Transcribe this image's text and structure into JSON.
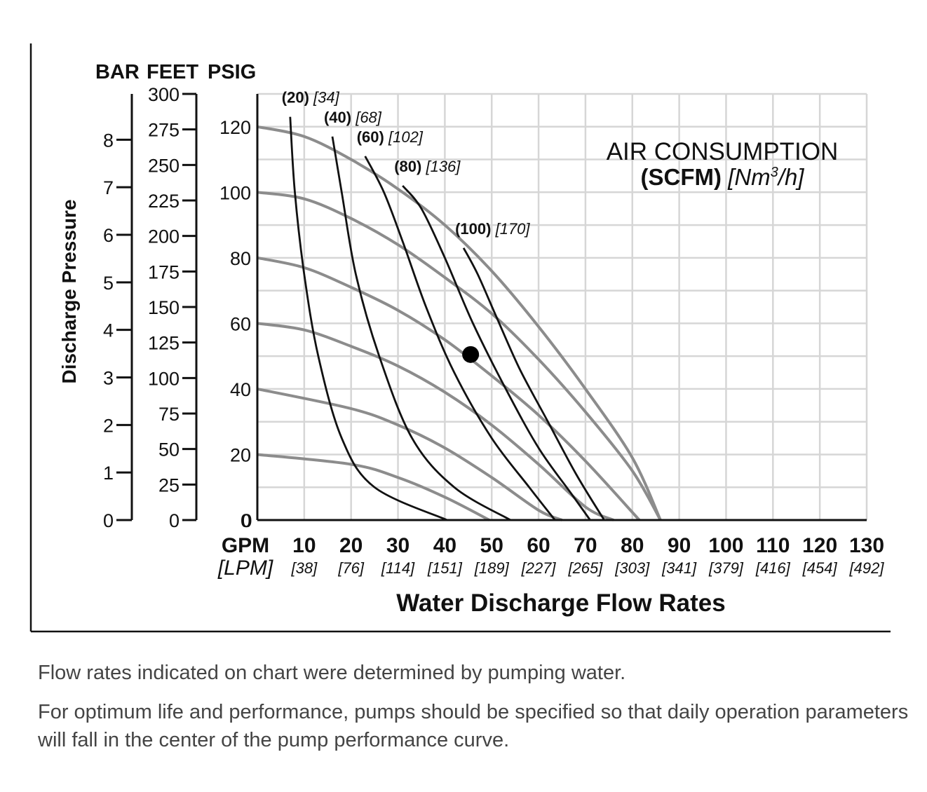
{
  "chart_data": {
    "type": "line",
    "title_line1": "AIR CONSUMPTION",
    "title_bold": "(SCFM)",
    "title_italic_prefix": "[Nm",
    "title_sup": "3",
    "title_italic_suffix": "/h]",
    "xlabel": "Water Discharge Flow Rates",
    "ylabel": "Discharge Pressure",
    "axis_headers": {
      "bar": "BAR",
      "feet": "FEET",
      "psig": "PSIG"
    },
    "x_unit_label": "GPM",
    "x_unit_label_alt": "[LPM]",
    "xlim": [
      0,
      130
    ],
    "ylim_psig": [
      0,
      130
    ],
    "x_ticks": [
      {
        "gpm": "0",
        "lpm": ""
      },
      {
        "gpm": "10",
        "lpm": "[38]"
      },
      {
        "gpm": "20",
        "lpm": "[76]"
      },
      {
        "gpm": "30",
        "lpm": "[114]"
      },
      {
        "gpm": "40",
        "lpm": "[151]"
      },
      {
        "gpm": "50",
        "lpm": "[189]"
      },
      {
        "gpm": "60",
        "lpm": "[227]"
      },
      {
        "gpm": "70",
        "lpm": "[265]"
      },
      {
        "gpm": "80",
        "lpm": "[303]"
      },
      {
        "gpm": "90",
        "lpm": "[341]"
      },
      {
        "gpm": "100",
        "lpm": "[379]"
      },
      {
        "gpm": "110",
        "lpm": "[416]"
      },
      {
        "gpm": "120",
        "lpm": "[454]"
      },
      {
        "gpm": "130",
        "lpm": "[492]"
      }
    ],
    "psig_ticks": [
      "0",
      "20",
      "40",
      "60",
      "80",
      "100",
      "120"
    ],
    "feet_ticks": [
      "0",
      "25",
      "50",
      "75",
      "100",
      "125",
      "150",
      "175",
      "200",
      "225",
      "250",
      "275",
      "300"
    ],
    "bar_ticks": [
      "0",
      "1",
      "2",
      "3",
      "4",
      "5",
      "6",
      "7",
      "8"
    ],
    "performance_curves": [
      {
        "points": [
          [
            0,
            20
          ],
          [
            20,
            17
          ],
          [
            30,
            13
          ],
          [
            40,
            7
          ],
          [
            49.5,
            0
          ]
        ]
      },
      {
        "points": [
          [
            0,
            40
          ],
          [
            20,
            34
          ],
          [
            30,
            29
          ],
          [
            40,
            22
          ],
          [
            50,
            13
          ],
          [
            60,
            3
          ],
          [
            65,
            0
          ]
        ]
      },
      {
        "points": [
          [
            0,
            60
          ],
          [
            10,
            58
          ],
          [
            20,
            53
          ],
          [
            30,
            47
          ],
          [
            40,
            39
          ],
          [
            50,
            29
          ],
          [
            60,
            17
          ],
          [
            70,
            4
          ],
          [
            76,
            0
          ]
        ]
      },
      {
        "points": [
          [
            0,
            80
          ],
          [
            10,
            77
          ],
          [
            20,
            71
          ],
          [
            30,
            64
          ],
          [
            40,
            55
          ],
          [
            50,
            44
          ],
          [
            60,
            32
          ],
          [
            70,
            18
          ],
          [
            81.5,
            0
          ]
        ]
      },
      {
        "points": [
          [
            0,
            100
          ],
          [
            10,
            98
          ],
          [
            20,
            92
          ],
          [
            30,
            84
          ],
          [
            40,
            74
          ],
          [
            50,
            63
          ],
          [
            60,
            49
          ],
          [
            70,
            33
          ],
          [
            80,
            15
          ],
          [
            86,
            0
          ]
        ]
      },
      {
        "points": [
          [
            0,
            120
          ],
          [
            10,
            117
          ],
          [
            20,
            110
          ],
          [
            30,
            101
          ],
          [
            40,
            90
          ],
          [
            50,
            76
          ],
          [
            60,
            59
          ],
          [
            70,
            40
          ],
          [
            80,
            19
          ],
          [
            86,
            0
          ]
        ]
      }
    ],
    "air_consumption_curves": [
      {
        "label_bold": "(20)",
        "label_italic": "[34]",
        "points": [
          [
            7,
            123
          ],
          [
            8,
            100
          ],
          [
            10,
            75
          ],
          [
            13,
            50
          ],
          [
            18,
            25
          ],
          [
            25,
            10
          ],
          [
            40.5,
            0
          ]
        ]
      },
      {
        "label_bold": "(40)",
        "label_italic": "[68]",
        "points": [
          [
            16,
            117
          ],
          [
            18,
            100
          ],
          [
            21,
            75
          ],
          [
            26,
            50
          ],
          [
            33,
            25
          ],
          [
            42,
            10
          ],
          [
            54,
            0
          ]
        ]
      },
      {
        "label_bold": "(60)",
        "label_italic": "[102]",
        "points": [
          [
            23,
            111
          ],
          [
            27,
            100
          ],
          [
            31,
            85
          ],
          [
            36,
            65
          ],
          [
            42,
            45
          ],
          [
            50,
            25
          ],
          [
            58,
            10
          ],
          [
            63.5,
            0
          ]
        ]
      },
      {
        "label_bold": "(80)",
        "label_italic": "[136]",
        "points": [
          [
            31,
            102
          ],
          [
            35,
            95
          ],
          [
            40,
            80
          ],
          [
            46,
            60
          ],
          [
            53,
            40
          ],
          [
            60,
            22
          ],
          [
            67,
            8
          ],
          [
            71,
            0
          ]
        ]
      },
      {
        "label_bold": "(100)",
        "label_italic": "[170]",
        "points": [
          [
            44,
            83
          ],
          [
            47,
            75
          ],
          [
            51,
            62
          ],
          [
            56,
            46
          ],
          [
            62,
            30
          ],
          [
            68,
            14
          ],
          [
            74,
            0
          ]
        ]
      }
    ],
    "operating_point": {
      "gpm": 45.5,
      "psig": 50.5
    }
  },
  "notes": {
    "line1": "Flow rates indicated on chart were determined by pumping water.",
    "line2": "For optimum life and performance, pumps should be specified so that daily operation parameters will fall in the center of the pump performance curve."
  }
}
